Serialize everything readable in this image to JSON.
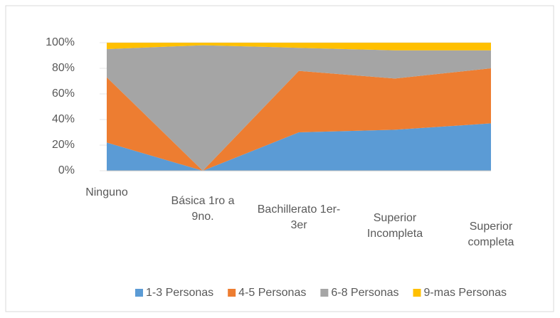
{
  "chart_data": {
    "type": "area",
    "categories": [
      "Ninguno",
      "Básica 1ro a 9no.",
      "Bachillerato 1er-3er",
      "Superior Incompleta",
      "Superior completa"
    ],
    "series": [
      {
        "name": "1-3 Personas",
        "color": "#5b9bd5",
        "values": [
          22,
          0,
          30,
          32,
          37
        ]
      },
      {
        "name": "4-5 Personas",
        "color": "#ed7d31",
        "values": [
          51,
          0,
          48,
          40,
          43
        ]
      },
      {
        "name": "6-8 Personas",
        "color": "#a5a5a5",
        "values": [
          22,
          98,
          18,
          22,
          14
        ]
      },
      {
        "name": "9-mas Personas",
        "color": "#ffc000",
        "values": [
          5,
          2,
          4,
          6,
          6
        ]
      }
    ],
    "stacked": true,
    "ylim": [
      0,
      100
    ],
    "yticks": [
      {
        "value": 0,
        "label": "0%"
      },
      {
        "value": 20,
        "label": "20%"
      },
      {
        "value": 40,
        "label": "40%"
      },
      {
        "value": 60,
        "label": "60%"
      },
      {
        "value": 80,
        "label": "80%"
      },
      {
        "value": 100,
        "label": "100%"
      }
    ],
    "legend": "bottom"
  }
}
